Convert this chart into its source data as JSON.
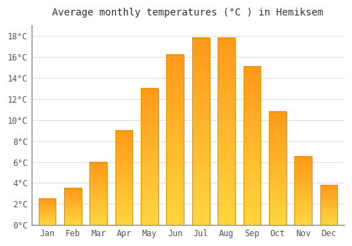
{
  "title": "Average monthly temperatures (°C ) in Hemiksem",
  "months": [
    "Jan",
    "Feb",
    "Mar",
    "Apr",
    "May",
    "Jun",
    "Jul",
    "Aug",
    "Sep",
    "Oct",
    "Nov",
    "Dec"
  ],
  "values": [
    2.5,
    3.5,
    6.0,
    9.0,
    13.0,
    16.2,
    17.8,
    17.8,
    15.1,
    10.8,
    6.5,
    3.8
  ],
  "bar_color": "#FFA726",
  "background_color": "#FFFFFF",
  "plot_bg_color": "#FFFFFF",
  "grid_color": "#E0E0E0",
  "ylim": [
    0,
    19
  ],
  "yticks": [
    0,
    2,
    4,
    6,
    8,
    10,
    12,
    14,
    16,
    18
  ],
  "ytick_labels": [
    "0°C",
    "2°C",
    "4°C",
    "6°C",
    "8°C",
    "10°C",
    "12°C",
    "14°C",
    "16°C",
    "18°C"
  ],
  "title_fontsize": 10,
  "tick_fontsize": 8.5,
  "bar_edge_color": "#E69500",
  "bar_edge_width": 0.8,
  "gradient_bottom": "#FFD740",
  "gradient_top": "#FF9800"
}
